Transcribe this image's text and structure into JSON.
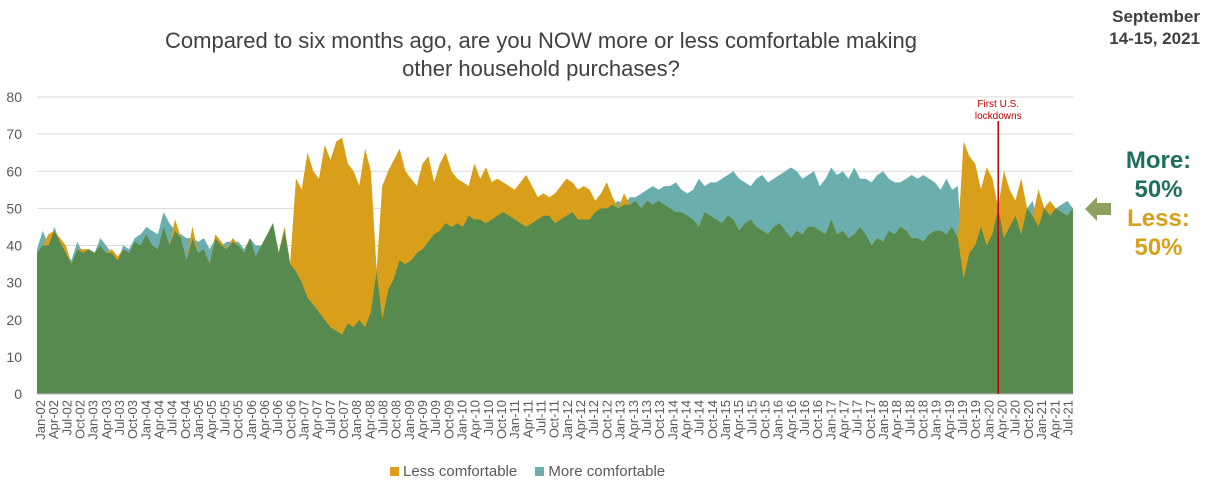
{
  "header": {
    "title_line1": "Compared to six months ago, are you NOW more or less comfortable making",
    "title_line2": "other household purchases?",
    "date_line1": "September",
    "date_line2": "14-15, 2021"
  },
  "callout": {
    "more_label": "More:",
    "more_value": "50%",
    "less_label": "Less:",
    "less_value": "50%"
  },
  "colors": {
    "less": "#d99f1a",
    "more": "#6aaead",
    "base": "#568a4f",
    "marker": "#c00000",
    "grid": "#d9d9d9"
  },
  "chart_data": {
    "type": "area",
    "ylim": [
      0,
      80
    ],
    "yticks": [
      0,
      10,
      20,
      30,
      40,
      50,
      60,
      70,
      80
    ],
    "xlabel": "",
    "ylabel": "",
    "x_start": "Jan-02",
    "x_ticks": [
      "Jan-02",
      "Apr-02",
      "Jul-02",
      "Oct-02",
      "Jan-03",
      "Apr-03",
      "Jul-03",
      "Oct-03",
      "Jan-04",
      "Apr-04",
      "Jul-04",
      "Oct-04",
      "Jan-05",
      "Apr-05",
      "Jul-05",
      "Oct-05",
      "Jan-06",
      "Apr-06",
      "Jul-06",
      "Oct-06",
      "Jan-07",
      "Apr-07",
      "Jul-07",
      "Oct-07",
      "Jan-08",
      "Apr-08",
      "Jul-08",
      "Oct-08",
      "Jan-09",
      "Apr-09",
      "Jul-09",
      "Oct-09",
      "Jan-10",
      "Apr-10",
      "Jul-10",
      "Oct-10",
      "Jan-11",
      "Apr-11",
      "Jul-11",
      "Oct-11",
      "Jan-12",
      "Apr-12",
      "Jul-12",
      "Oct-12",
      "Jan-13",
      "Apr-13",
      "Jul-13",
      "Oct-13",
      "Jan-14",
      "Apr-14",
      "Jul-14",
      "Oct-14",
      "Jan-15",
      "Apr-15",
      "Jul-15",
      "Oct-15",
      "Jan-16",
      "Apr-16",
      "Jul-16",
      "Oct-16",
      "Jan-17",
      "Apr-17",
      "Jul-17",
      "Oct-17",
      "Jan-18",
      "Apr-18",
      "Jul-18",
      "Oct-18",
      "Jan-19",
      "Apr-19",
      "Jul-19",
      "Oct-19",
      "Jan-20",
      "Apr-20",
      "Jul-20",
      "Oct-20",
      "Jan-21",
      "Apr-21",
      "Jul-21"
    ],
    "series": [
      {
        "name": "Less comfortable",
        "values": [
          38,
          40,
          43,
          44,
          42,
          40,
          35,
          39,
          39,
          39,
          38,
          40,
          38,
          39,
          37,
          39,
          38,
          41,
          40,
          43,
          40,
          39,
          45,
          40,
          47,
          42,
          36,
          45,
          38,
          39,
          35,
          43,
          41,
          39,
          42,
          40,
          38,
          42,
          37,
          40,
          43,
          46,
          38,
          45,
          35,
          58,
          55,
          65,
          60,
          58,
          67,
          63,
          68,
          69,
          62,
          60,
          56,
          66,
          60,
          33,
          56,
          60,
          63,
          66,
          60,
          58,
          56,
          62,
          64,
          57,
          62,
          65,
          60,
          58,
          57,
          56,
          62,
          58,
          61,
          57,
          58,
          57,
          56,
          55,
          57,
          59,
          56,
          53,
          54,
          53,
          54,
          56,
          58,
          57,
          55,
          56,
          55,
          52,
          54,
          57,
          53,
          50,
          54,
          51,
          52,
          50,
          52,
          51,
          52,
          51,
          50,
          49,
          49,
          48,
          47,
          45,
          49,
          48,
          47,
          46,
          48,
          47,
          44,
          46,
          47,
          45,
          44,
          43,
          45,
          46,
          44,
          42,
          44,
          43,
          45,
          45,
          44,
          43,
          47,
          43,
          44,
          42,
          43,
          45,
          43,
          40,
          42,
          41,
          44,
          43,
          45,
          44,
          42,
          42,
          41,
          43,
          44,
          44,
          43,
          45,
          42,
          68,
          64,
          62,
          55,
          61,
          58,
          50,
          60,
          55,
          52,
          58,
          50,
          48,
          55,
          50,
          52,
          50,
          49,
          48,
          50
        ]
      },
      {
        "name": "More comfortable",
        "values": [
          39,
          44,
          40,
          45,
          41,
          38,
          36,
          41,
          38,
          39,
          38,
          42,
          40,
          38,
          36,
          40,
          39,
          42,
          43,
          45,
          44,
          43,
          49,
          46,
          44,
          43,
          42,
          42,
          41,
          42,
          39,
          42,
          40,
          41,
          41,
          41,
          39,
          42,
          40,
          40,
          43,
          46,
          38,
          44,
          35,
          33,
          30,
          26,
          24,
          22,
          20,
          18,
          17,
          16,
          19,
          18,
          20,
          18,
          22,
          34,
          20,
          28,
          31,
          36,
          35,
          36,
          38,
          39,
          41,
          43,
          44,
          46,
          45,
          46,
          45,
          48,
          47,
          47,
          46,
          47,
          48,
          49,
          48,
          47,
          46,
          45,
          46,
          47,
          48,
          48,
          46,
          47,
          48,
          49,
          47,
          47,
          47,
          49,
          50,
          50,
          51,
          52,
          51,
          53,
          53,
          54,
          55,
          56,
          55,
          56,
          56,
          57,
          55,
          54,
          55,
          58,
          56,
          57,
          57,
          58,
          59,
          60,
          58,
          57,
          56,
          58,
          59,
          57,
          58,
          59,
          60,
          61,
          60,
          58,
          59,
          60,
          56,
          58,
          61,
          59,
          60,
          58,
          61,
          58,
          58,
          57,
          59,
          60,
          58,
          57,
          57,
          58,
          59,
          58,
          59,
          58,
          57,
          55,
          58,
          55,
          56,
          31,
          38,
          40,
          45,
          40,
          43,
          50,
          42,
          45,
          48,
          43,
          50,
          52,
          45,
          50,
          48,
          50,
          51,
          52,
          50
        ]
      }
    ],
    "annotations": [
      {
        "text_line1": "First U.S.",
        "text_line2": "lockdowns",
        "x": "Mar-20"
      }
    ],
    "legend": {
      "position": "bottom",
      "items": [
        "Less comfortable",
        "More comfortable"
      ]
    },
    "grid": true
  }
}
